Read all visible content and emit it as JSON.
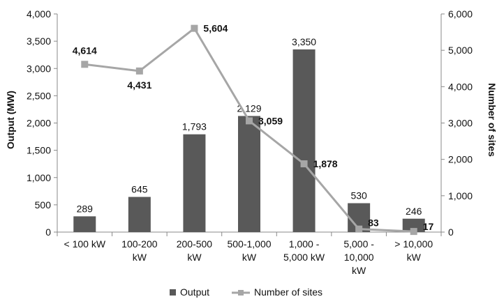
{
  "chart_data": {
    "type": "bar",
    "categories": [
      [
        "< 100 kW"
      ],
      [
        "100-200",
        "kW"
      ],
      [
        "200-500",
        "kW"
      ],
      [
        "500-1,000",
        "kW"
      ],
      [
        "1,000 -",
        "5,000 kW"
      ],
      [
        "5,000 -",
        "10,000",
        "kW"
      ],
      [
        "> 10,000",
        "kW"
      ]
    ],
    "series": [
      {
        "name": "Output",
        "type": "bar",
        "axis": "left",
        "color": "#595959",
        "values": [
          289,
          645,
          1793,
          2129,
          3350,
          530,
          246
        ],
        "value_labels": [
          "289",
          "645",
          "1,793",
          "2,129",
          "3,350",
          "530",
          "246"
        ]
      },
      {
        "name": "Number of sites",
        "type": "line",
        "axis": "right",
        "color": "#a6a6a6",
        "values": [
          4614,
          4431,
          5604,
          3059,
          1878,
          83,
          17
        ],
        "value_labels": [
          "4,614",
          "4,431",
          "5,604",
          "3,059",
          "1,878",
          "83",
          "17"
        ]
      }
    ],
    "ylabel": "Output (MW)",
    "y2label": "Number of sites",
    "ylim": [
      0,
      4000
    ],
    "y2lim": [
      0,
      6000
    ],
    "y_ticks": [
      "0",
      "500",
      "1,000",
      "1,500",
      "2,000",
      "2,500",
      "3,000",
      "3,500",
      "4,000"
    ],
    "y2_ticks": [
      "0",
      "1,000",
      "2,000",
      "3,000",
      "4,000",
      "5,000",
      "6,000"
    ],
    "grid": false,
    "legend_position": "bottom"
  }
}
